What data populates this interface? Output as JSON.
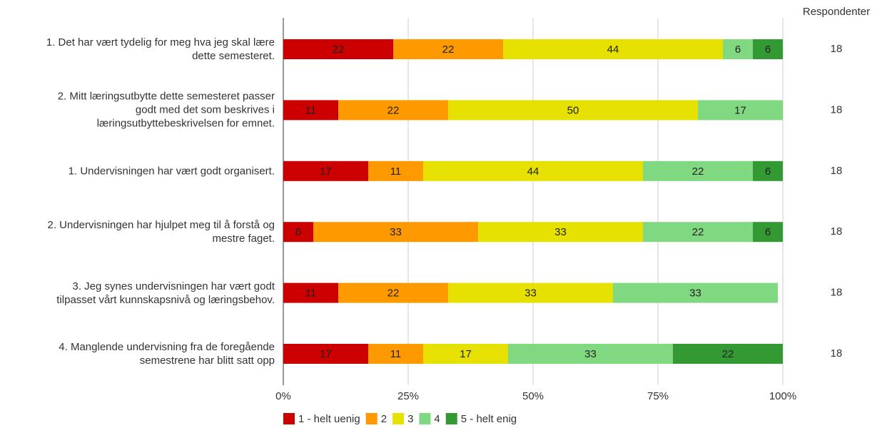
{
  "chart_data": {
    "type": "stacked-bar-horizontal",
    "categories": [
      "1. Det har vært tydelig for meg hva jeg skal lære\ndette semesteret.",
      "2. Mitt læringsutbytte dette semesteret passer\ngodt med det som beskrives i\nlæringsutbyttebeskrivelsen for emnet.",
      "1. Undervisningen har vært godt organisert.",
      "2. Undervisningen har hjulpet meg til å forstå og\nmestre faget.",
      "3. Jeg synes undervisningen har vært godt\ntilpasset vårt kunnskapsnivå og læringsbehov.",
      "4. Manglende undervisning fra de foregående\nsemestrene har blitt satt opp"
    ],
    "series": [
      {
        "name": "1 - helt uenig",
        "color": "#cc0000",
        "values": [
          22,
          11,
          17,
          6,
          11,
          17
        ]
      },
      {
        "name": "2",
        "color": "#ff9900",
        "values": [
          22,
          22,
          11,
          33,
          22,
          11
        ]
      },
      {
        "name": "3",
        "color": "#e6e100",
        "values": [
          44,
          50,
          44,
          33,
          33,
          17
        ]
      },
      {
        "name": "4",
        "color": "#80d880",
        "values": [
          6,
          17,
          22,
          22,
          33,
          33
        ]
      },
      {
        "name": "5 - helt enig",
        "color": "#339933",
        "values": [
          6,
          null,
          6,
          6,
          null,
          22
        ]
      }
    ],
    "xlim": [
      0,
      100
    ],
    "xticks": [
      {
        "value": 0,
        "label": "0%"
      },
      {
        "value": 25,
        "label": "25%"
      },
      {
        "value": 50,
        "label": "50%"
      },
      {
        "value": 75,
        "label": "75%"
      },
      {
        "value": 100,
        "label": "100%"
      }
    ],
    "grid": true,
    "respondents_label": "Respondenter",
    "respondents": [
      18,
      18,
      18,
      18,
      18,
      18
    ],
    "legend": "bottom-left"
  }
}
